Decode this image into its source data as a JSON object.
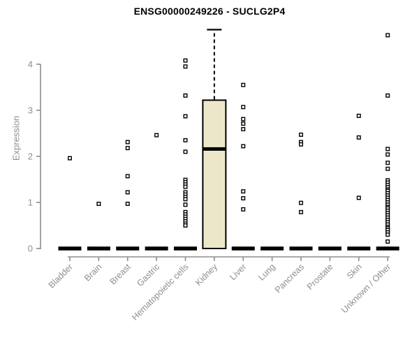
{
  "chart_data": {
    "type": "boxplot",
    "title": "ENSG00000249226 - SUCLG2P4",
    "xlabel": "",
    "ylabel": "Expression",
    "ylim": [
      0,
      4.9
    ],
    "yticks": [
      0,
      1,
      2,
      3,
      4
    ],
    "grid": false,
    "legend": false,
    "categories": [
      "Bladder",
      "Brain",
      "Breast",
      "Gastric",
      "Hematopoietic cells",
      "Kidney",
      "Liver",
      "Lung",
      "Pancreas",
      "Prostate",
      "Skin",
      "Unknown / Other"
    ],
    "boxes": [
      {
        "category": "Bladder",
        "q1": 0,
        "median": 0,
        "q3": 0,
        "whisker_low": 0,
        "whisker_high": 0,
        "points": [
          1.96
        ]
      },
      {
        "category": "Brain",
        "q1": 0,
        "median": 0,
        "q3": 0,
        "whisker_low": 0,
        "whisker_high": 0,
        "points": [
          0.97
        ]
      },
      {
        "category": "Breast",
        "q1": 0,
        "median": 0,
        "q3": 0,
        "whisker_low": 0,
        "whisker_high": 0,
        "points": [
          2.31,
          2.18,
          1.57,
          1.22,
          0.97
        ]
      },
      {
        "category": "Gastric",
        "q1": 0,
        "median": 0,
        "q3": 0,
        "whisker_low": 0,
        "whisker_high": 0,
        "points": [
          2.46
        ]
      },
      {
        "category": "Hematopoietic cells",
        "q1": 0,
        "median": 0,
        "q3": 0,
        "whisker_low": 0,
        "whisker_high": 0,
        "points": [
          4.08,
          3.95,
          3.32,
          2.87,
          2.35,
          2.1,
          1.49,
          1.44,
          1.39,
          1.34,
          1.22,
          1.17,
          1.12,
          1.07,
          0.95,
          0.79,
          0.74,
          0.69,
          0.64,
          0.59,
          0.54,
          0.5
        ]
      },
      {
        "category": "Kidney",
        "q1": 0,
        "median": 2.16,
        "q3": 3.22,
        "whisker_low": 0,
        "whisker_high": 4.75,
        "points": []
      },
      {
        "category": "Liver",
        "q1": 0,
        "median": 0,
        "q3": 0,
        "whisker_low": 0,
        "whisker_high": 0,
        "points": [
          3.55,
          3.07,
          2.81,
          2.71,
          2.59,
          2.22,
          1.24,
          1.09,
          0.85
        ]
      },
      {
        "category": "Lung",
        "q1": 0,
        "median": 0,
        "q3": 0,
        "whisker_low": 0,
        "whisker_high": 0,
        "points": []
      },
      {
        "category": "Pancreas",
        "q1": 0,
        "median": 0,
        "q3": 0,
        "whisker_low": 0,
        "whisker_high": 0,
        "points": [
          2.47,
          2.31,
          2.26,
          0.99,
          0.79
        ]
      },
      {
        "category": "Prostate",
        "q1": 0,
        "median": 0,
        "q3": 0,
        "whisker_low": 0,
        "whisker_high": 0,
        "points": []
      },
      {
        "category": "Skin",
        "q1": 0,
        "median": 0,
        "q3": 0,
        "whisker_low": 0,
        "whisker_high": 0,
        "points": [
          2.88,
          2.41,
          1.1
        ]
      },
      {
        "category": "Unknown / Other",
        "q1": 0,
        "median": 0,
        "q3": 0,
        "whisker_low": 0,
        "whisker_high": 0,
        "points": [
          4.63,
          3.32,
          2.16,
          2.04,
          1.86,
          1.73,
          1.48,
          1.43,
          1.38,
          1.33,
          1.28,
          1.25,
          1.2,
          1.15,
          1.1,
          1.05,
          1.0,
          0.95,
          0.9,
          0.87,
          0.82,
          0.77,
          0.72,
          0.67,
          0.62,
          0.57,
          0.52,
          0.47,
          0.44,
          0.4,
          0.35,
          0.3,
          0.15
        ]
      }
    ],
    "colors": {
      "background": "#ffffff",
      "box_fill": "#ede7c9",
      "box_border": "#000000",
      "median": "#000000",
      "whisker": "#000000",
      "axis": "#8e8e8e",
      "tick_label": "#8e8e8e",
      "point_stroke": "#000000",
      "point_fill": "#ffffff",
      "title": "#000000"
    }
  }
}
